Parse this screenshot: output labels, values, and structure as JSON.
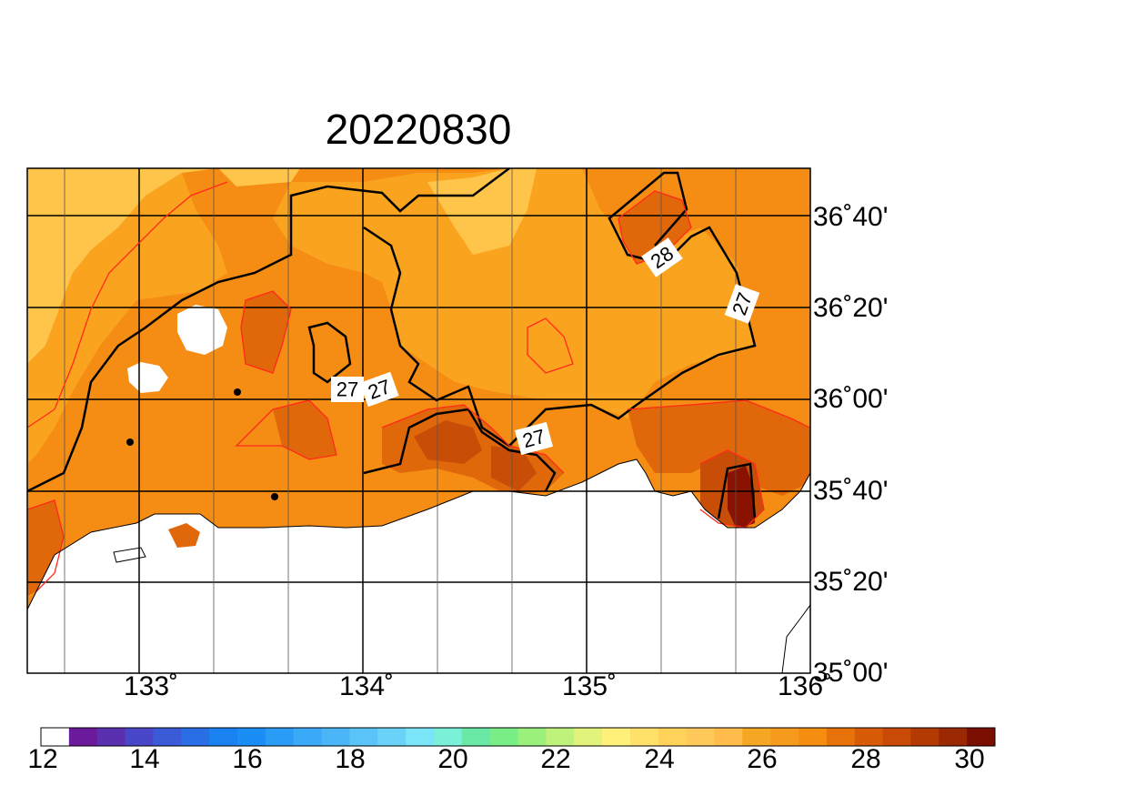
{
  "title": "20220830",
  "lat_labels": [
    "36˚40'",
    "36˚20'",
    "36˚00'",
    "35˚40'",
    "35˚20'",
    "35˚00'"
  ],
  "lon_labels": [
    "133˚",
    "134˚",
    "135˚",
    "136˚"
  ],
  "colorbar_labels": [
    "12",
    "14",
    "16",
    "18",
    "20",
    "22",
    "24",
    "26",
    "28",
    "30"
  ],
  "colorbar_colors": [
    "#ffffff",
    "#6a1a9a",
    "#5a2fb0",
    "#4a46c8",
    "#3a5ad8",
    "#2a6ee6",
    "#1a82f0",
    "#1a8ef4",
    "#2a9cf6",
    "#3aaaf8",
    "#4ab6f8",
    "#5ac4f8",
    "#6ad2f8",
    "#7ae4f8",
    "#7af0d8",
    "#6ae8a6",
    "#7aee86",
    "#9af07a",
    "#bef27a",
    "#e2f27a",
    "#fff07a",
    "#ffe06a",
    "#ffd25a",
    "#ffc85a",
    "#ffbc4a",
    "#f5a623",
    "#f59a1c",
    "#f58e10",
    "#e8720a",
    "#d85c08",
    "#c84a06",
    "#b43a04",
    "#9a2802",
    "#7a0e00"
  ],
  "contour_labels": [
    "28",
    "27",
    "27",
    "27",
    "27"
  ],
  "colors": {
    "field_light": "#ffc54a",
    "field_mid": "#faa31f",
    "field_main": "#f58c14",
    "field_dark": "#e0680a",
    "field_darker": "#c84e08",
    "field_hot": "#8a1200"
  }
}
